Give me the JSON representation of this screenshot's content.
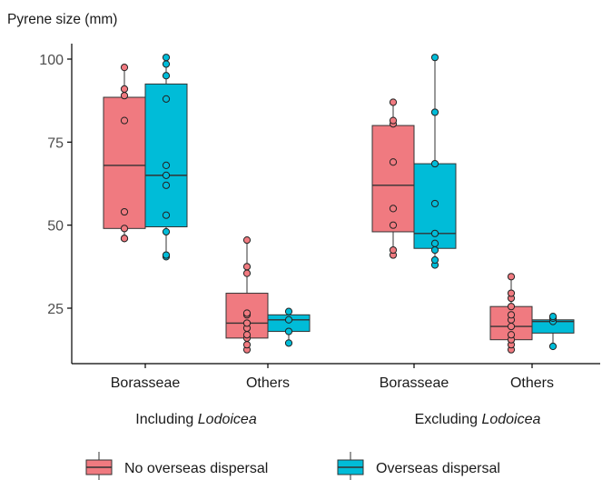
{
  "chart_data": {
    "type": "box",
    "ylabel": "Pyrene size (mm)",
    "y_ticks": [
      25,
      50,
      75,
      100
    ],
    "ylim": [
      9,
      103
    ],
    "grid": false,
    "legend_position": "bottom",
    "groups": [
      {
        "prefix": "Including ",
        "italic": "Lodoicea",
        "categories": [
          "Borasseae",
          "Others"
        ]
      },
      {
        "prefix": "Excluding ",
        "italic": "Lodoicea",
        "categories": [
          "Borasseae",
          "Others"
        ]
      }
    ],
    "series": [
      {
        "name": "No overseas dispersal",
        "color": "#F07A80"
      },
      {
        "name": "Overseas dispersal",
        "color": "#00BCD8"
      }
    ],
    "boxes": [
      {
        "group": 0,
        "category": 0,
        "series": 0,
        "q1": 49,
        "median": 68,
        "q3": 88.5,
        "points": [
          46,
          46,
          49,
          54,
          81.5,
          89,
          91,
          97.5
        ],
        "whisker_min": 46,
        "whisker_max": 97.5
      },
      {
        "group": 0,
        "category": 0,
        "series": 1,
        "q1": 49.5,
        "median": 65,
        "q3": 92.5,
        "points": [
          40.5,
          41,
          48,
          53,
          62,
          65,
          68,
          88,
          95,
          98.5,
          100.5
        ],
        "whisker_min": 40.5,
        "whisker_max": 100.5
      },
      {
        "group": 0,
        "category": 1,
        "series": 0,
        "q1": 16,
        "median": 20.5,
        "q3": 29.5,
        "points": [
          12.5,
          14,
          16,
          17,
          19,
          20.5,
          23,
          23.5,
          35.5,
          37.5,
          45.5
        ],
        "whisker_min": 12.5,
        "whisker_max": 45.5
      },
      {
        "group": 0,
        "category": 1,
        "series": 1,
        "q1": 18,
        "median": 21.5,
        "q3": 23,
        "points": [
          14.5,
          18,
          21.5,
          24
        ],
        "whisker_min": 14.5,
        "whisker_max": 24
      },
      {
        "group": 1,
        "category": 0,
        "series": 0,
        "q1": 48,
        "median": 62,
        "q3": 80,
        "points": [
          41,
          42.5,
          50,
          55,
          69,
          80.5,
          81.5,
          87
        ],
        "whisker_min": 41,
        "whisker_max": 87
      },
      {
        "group": 1,
        "category": 0,
        "series": 1,
        "q1": 43,
        "median": 47.5,
        "q3": 68.5,
        "points": [
          38,
          39.5,
          42.5,
          44.5,
          47.5,
          56.5,
          68.5,
          84,
          100.5
        ],
        "whisker_min": 38,
        "whisker_max": 100.5
      },
      {
        "group": 1,
        "category": 1,
        "series": 0,
        "q1": 15.5,
        "median": 19.5,
        "q3": 25.5,
        "points": [
          12.5,
          14,
          15.5,
          17,
          19.5,
          21.5,
          23,
          25.5,
          28,
          29.5,
          34.5
        ],
        "whisker_min": 12.5,
        "whisker_max": 34.5
      },
      {
        "group": 1,
        "category": 1,
        "series": 1,
        "q1": 17.5,
        "median": 21,
        "q3": 21.5,
        "points": [
          13.5,
          21,
          22,
          22.5
        ],
        "whisker_min": 13.5,
        "whisker_max": 22.5
      }
    ]
  }
}
